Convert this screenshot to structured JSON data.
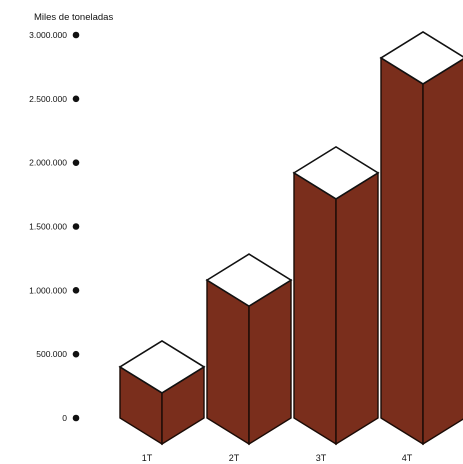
{
  "chart_data": {
    "type": "bar",
    "ylabel": "Miles de toneladas",
    "categories": [
      "1T",
      "2T",
      "3T",
      "4T"
    ],
    "values": [
      400000,
      1080000,
      1920000,
      2820000
    ],
    "ylim": [
      0,
      3000000
    ],
    "yticks": [
      0,
      500000,
      1000000,
      1500000,
      2000000,
      2500000,
      3000000
    ],
    "ytick_labels": [
      "0",
      "500.000",
      "1.000.000",
      "1.500.000",
      "2.000.000",
      "2.500.000",
      "3.000.000"
    ],
    "grid": false,
    "legend": "none",
    "colors": {
      "bar": "#7a2e1c",
      "bar_edge": "#1a0b06",
      "top": "#ffffff"
    }
  }
}
